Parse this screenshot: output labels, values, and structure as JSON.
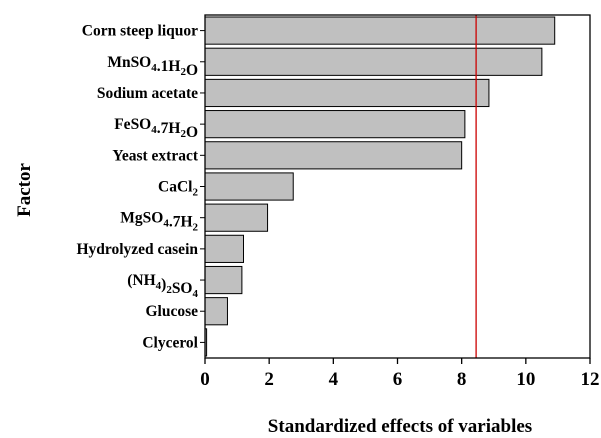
{
  "chart_data": {
    "type": "bar",
    "orientation": "horizontal",
    "categories": [
      [
        "Corn steep liquor"
      ],
      [
        "MnSO",
        {
          "t": "4",
          "s": 1
        },
        ".1H",
        {
          "t": "2",
          "s": 1
        },
        "O"
      ],
      [
        "Sodium acetate"
      ],
      [
        "FeSO",
        {
          "t": "4",
          "s": 1
        },
        ".7H",
        {
          "t": "2",
          "s": 1
        },
        "O"
      ],
      [
        "Yeast extract"
      ],
      [
        "CaCl",
        {
          "t": "2",
          "s": 1
        }
      ],
      [
        "MgSO",
        {
          "t": "4",
          "s": 1
        },
        ".7H",
        {
          "t": "2",
          "s": 1
        }
      ],
      [
        "Hydrolyzed casein"
      ],
      [
        "(NH",
        {
          "t": "4",
          "s": 1
        },
        ")",
        {
          "t": "2",
          "s": 1
        },
        "SO",
        {
          "t": "4",
          "s": 1
        }
      ],
      [
        "Glucose"
      ],
      [
        "Clycerol"
      ]
    ],
    "values": [
      10.9,
      10.5,
      8.85,
      8.1,
      8.0,
      2.75,
      1.95,
      1.2,
      1.15,
      0.7,
      0.05
    ],
    "reference_line": 8.45,
    "xlim": [
      0,
      12
    ],
    "xticks": [
      "0",
      "2",
      "4",
      "6",
      "8",
      "10",
      "12"
    ],
    "xlabel": "Standardized effects of variables",
    "ylabel": "Factor",
    "colors": {
      "bar_fill": "#c0c0c0",
      "bar_stroke": "#000000",
      "reference_line": "#cc0000",
      "axis": "#000000"
    }
  }
}
